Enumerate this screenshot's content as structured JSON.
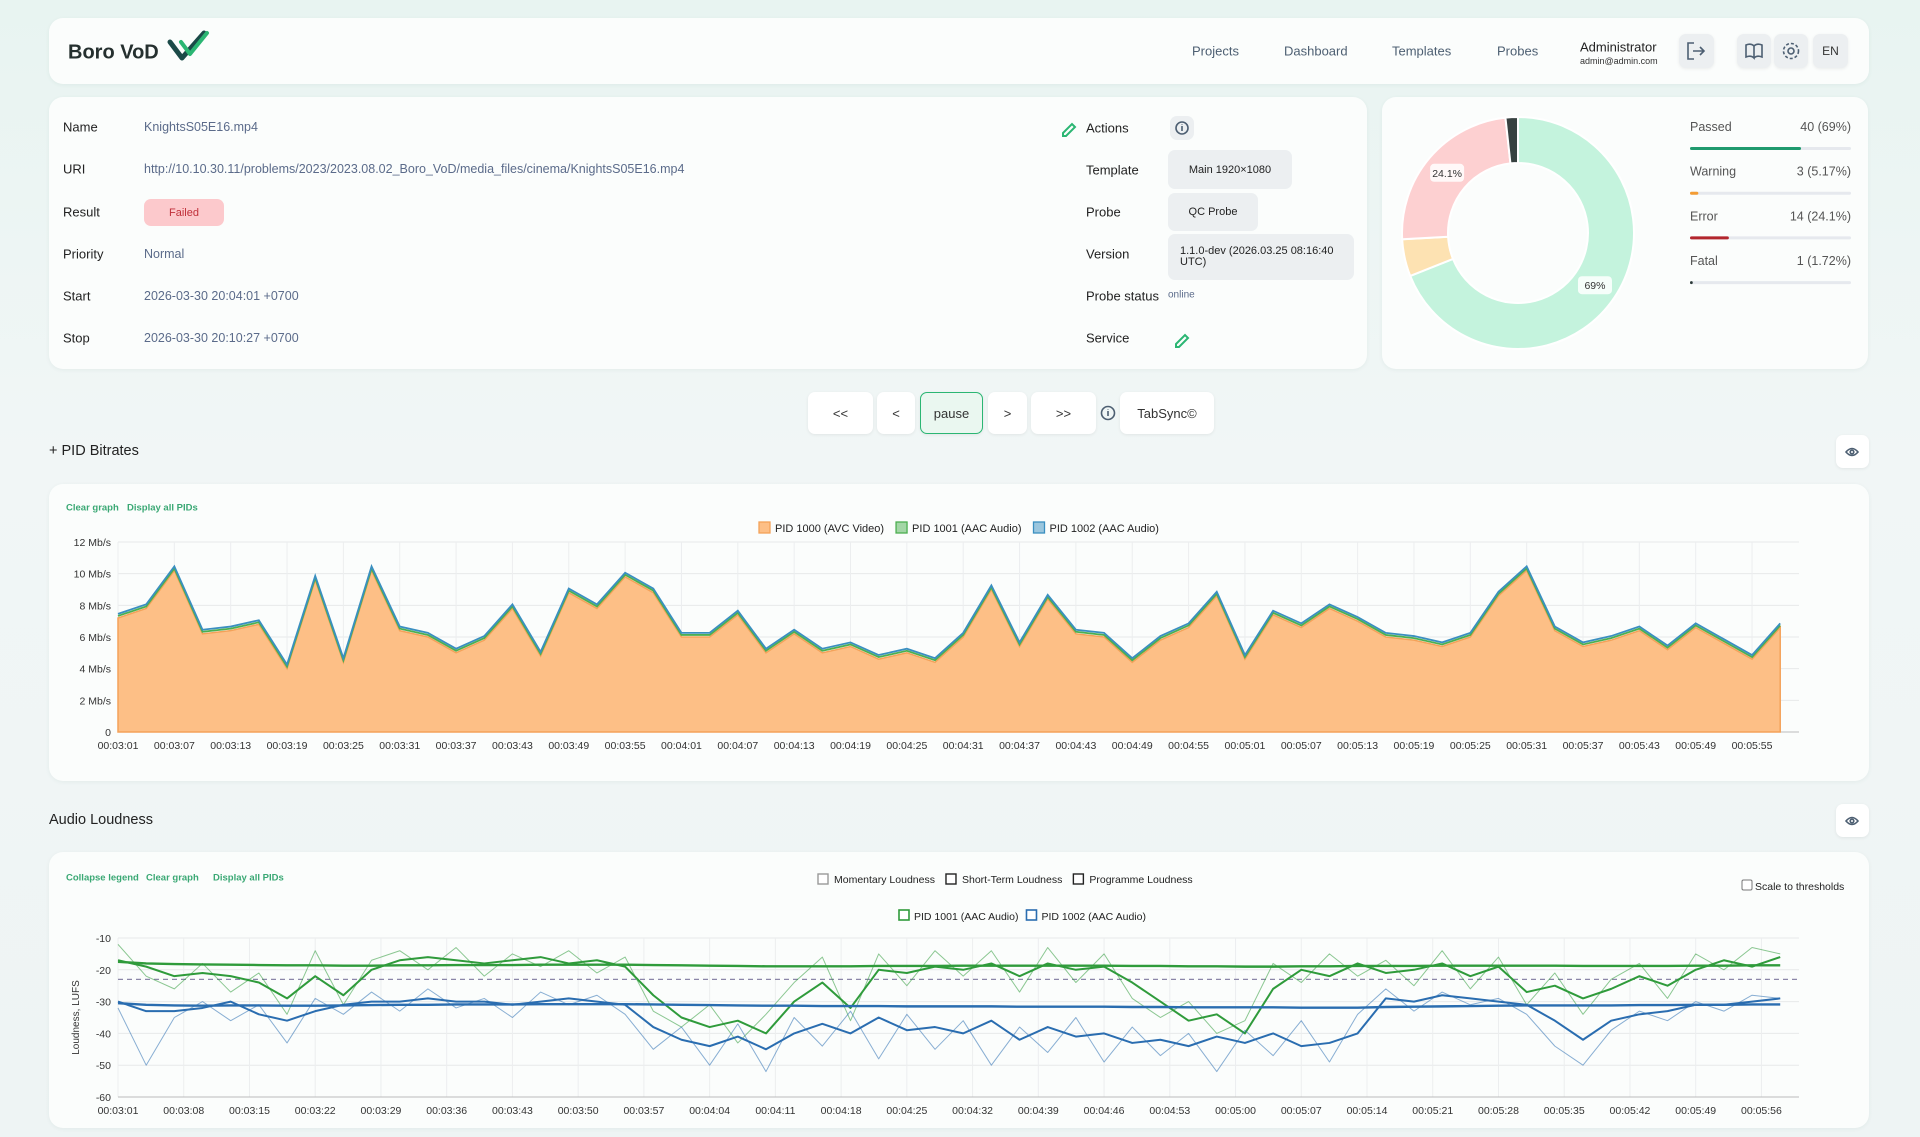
{
  "header": {
    "brand": "Boro VoD",
    "nav": [
      "Projects",
      "Dashboard",
      "Templates",
      "Probes"
    ],
    "user": "Administrator",
    "email": "admin@admin.com",
    "language": "EN"
  },
  "details": {
    "rows": [
      [
        "Name",
        "KnightsS05E16.mp4"
      ],
      [
        "URI",
        "http://10.10.30.11/problems/2023/2023.08.02_Boro_VoD/media_files/cinema/KnightsS05E16.mp4"
      ],
      [
        "Result",
        "Failed"
      ],
      [
        "Priority",
        "Normal"
      ],
      [
        "Start",
        "2026-03-30 20:04:01 +0700"
      ],
      [
        "Stop",
        "2026-03-30 20:10:27 +0700"
      ]
    ],
    "side": [
      [
        "Actions"
      ],
      [
        "Template",
        "Main 1920×1080"
      ],
      [
        "Probe",
        "QC Probe"
      ],
      [
        "Version",
        "1.1.0-dev (2026.03.25 08:16:40 UTC)"
      ],
      [
        "Probe status",
        "online"
      ],
      [
        "Service"
      ]
    ]
  },
  "controls": [
    "<<",
    "<",
    "pause",
    ">",
    ">>"
  ],
  "tabsync": "TabSync©",
  "bitrates": {
    "title": "+ PID Bitrates",
    "links": [
      "Clear graph",
      "Display all PIDs"
    ]
  },
  "loudness": {
    "title": "Audio Loudness",
    "links": [
      "Collapse legend",
      "Clear graph",
      "Display all PIDs"
    ],
    "toggle": "Scale to thresholds"
  },
  "chart_data": [
    {
      "type": "donut",
      "categories": [
        "Passed",
        "Warning",
        "Error",
        "Fatal"
      ],
      "values": [
        40,
        3,
        14,
        1
      ],
      "value_labels": [
        "40 (69%)",
        "3 (5.17%)",
        "14 (24.1%)",
        "1 (1.72%)"
      ],
      "slice_labels": [
        "69%",
        null,
        "24.1%",
        null
      ],
      "colors": [
        "#c4f3dd",
        "#fde2b2",
        "#fdd0d1",
        "#374140"
      ],
      "bar_colors": [
        "#1f9a6e",
        "#f39c34",
        "#b3262d",
        "#2c3a3a"
      ]
    },
    {
      "type": "stacked-area",
      "x": [
        181,
        184,
        187,
        190,
        193,
        196,
        199,
        202,
        205,
        208,
        211,
        214,
        217,
        220,
        223,
        226,
        229,
        232,
        235,
        238,
        241,
        244,
        247,
        250,
        253,
        256,
        259,
        262,
        265,
        268,
        271,
        274,
        277,
        280,
        283,
        286,
        289,
        292,
        295,
        298,
        301,
        304,
        307,
        310,
        313,
        316,
        319,
        322,
        325,
        328,
        331,
        334,
        337,
        340,
        343,
        346,
        349,
        352,
        355,
        358
      ],
      "xlim": [
        181,
        360
      ],
      "xticks": [
        {
          "value": 181,
          "label": "00:03:01"
        },
        {
          "value": 187,
          "label": "00:03:07"
        },
        {
          "value": 193,
          "label": "00:03:13"
        },
        {
          "value": 199,
          "label": "00:03:19"
        },
        {
          "value": 205,
          "label": "00:03:25"
        },
        {
          "value": 211,
          "label": "00:03:31"
        },
        {
          "value": 217,
          "label": "00:03:37"
        },
        {
          "value": 223,
          "label": "00:03:43"
        },
        {
          "value": 229,
          "label": "00:03:49"
        },
        {
          "value": 235,
          "label": "00:03:55"
        },
        {
          "value": 241,
          "label": "00:04:01"
        },
        {
          "value": 247,
          "label": "00:04:07"
        },
        {
          "value": 253,
          "label": "00:04:13"
        },
        {
          "value": 259,
          "label": "00:04:19"
        },
        {
          "value": 265,
          "label": "00:04:25"
        },
        {
          "value": 271,
          "label": "00:04:31"
        },
        {
          "value": 277,
          "label": "00:04:37"
        },
        {
          "value": 283,
          "label": "00:04:43"
        },
        {
          "value": 289,
          "label": "00:04:49"
        },
        {
          "value": 295,
          "label": "00:04:55"
        },
        {
          "value": 301,
          "label": "00:05:01"
        },
        {
          "value": 307,
          "label": "00:05:07"
        },
        {
          "value": 313,
          "label": "00:05:13"
        },
        {
          "value": 319,
          "label": "00:05:19"
        },
        {
          "value": 325,
          "label": "00:05:25"
        },
        {
          "value": 331,
          "label": "00:05:31"
        },
        {
          "value": 337,
          "label": "00:05:37"
        },
        {
          "value": 343,
          "label": "00:05:43"
        },
        {
          "value": 349,
          "label": "00:05:49"
        },
        {
          "value": 355,
          "label": "00:05:55"
        }
      ],
      "ylim": [
        0,
        12
      ],
      "yticks": [
        0,
        {
          "value": 2,
          "label": "2 Mb/s"
        },
        {
          "value": 4,
          "label": "4 Mb/s"
        },
        {
          "value": 6,
          "label": "6 Mb/s"
        },
        {
          "value": 8,
          "label": "8 Mb/s"
        },
        {
          "value": 10,
          "label": "10 Mb/s"
        },
        {
          "value": 12,
          "label": "12 Mb/s"
        }
      ],
      "grid": true,
      "series": [
        {
          "name": "PID 1000 (AVC Video)",
          "color": "#f4a259",
          "fill": "#fdbf86",
          "values": [
            7.2,
            7.8,
            10.2,
            6.2,
            6.4,
            6.8,
            4.0,
            9.6,
            4.4,
            10.2,
            6.4,
            6.0,
            5.0,
            5.8,
            7.8,
            4.8,
            8.8,
            7.8,
            9.8,
            8.8,
            6.0,
            6.0,
            7.4,
            5.0,
            6.2,
            5.0,
            5.4,
            4.6,
            5.0,
            4.4,
            6.0,
            9.0,
            5.4,
            8.4,
            6.2,
            6.0,
            4.4,
            5.8,
            6.6,
            8.6,
            4.6,
            7.4,
            6.6,
            7.8,
            7.0,
            6.0,
            5.8,
            5.4,
            6.0,
            8.6,
            10.2,
            6.4,
            5.4,
            5.8,
            6.4,
            5.2,
            6.6,
            5.6,
            4.6,
            6.6
          ]
        },
        {
          "name": "PID 1001 (AAC Audio)",
          "color": "#4caf50",
          "values": [
            0.13,
            0.13,
            0.13,
            0.13,
            0.13,
            0.13,
            0.13,
            0.13,
            0.13,
            0.13,
            0.13,
            0.13,
            0.13,
            0.13,
            0.13,
            0.13,
            0.13,
            0.13,
            0.13,
            0.13,
            0.13,
            0.13,
            0.13,
            0.13,
            0.13,
            0.13,
            0.13,
            0.13,
            0.13,
            0.13,
            0.13,
            0.13,
            0.13,
            0.13,
            0.13,
            0.13,
            0.13,
            0.13,
            0.13,
            0.13,
            0.13,
            0.13,
            0.13,
            0.13,
            0.13,
            0.13,
            0.13,
            0.13,
            0.13,
            0.13,
            0.13,
            0.13,
            0.13,
            0.13,
            0.13,
            0.13,
            0.13,
            0.13,
            0.13,
            0.13
          ]
        },
        {
          "name": "PID 1002 (AAC Audio)",
          "color": "#3a8fc0",
          "values": [
            0.13,
            0.13,
            0.13,
            0.13,
            0.13,
            0.13,
            0.13,
            0.13,
            0.13,
            0.13,
            0.13,
            0.13,
            0.13,
            0.13,
            0.13,
            0.13,
            0.13,
            0.13,
            0.13,
            0.13,
            0.13,
            0.13,
            0.13,
            0.13,
            0.13,
            0.13,
            0.13,
            0.13,
            0.13,
            0.13,
            0.13,
            0.13,
            0.13,
            0.13,
            0.13,
            0.13,
            0.13,
            0.13,
            0.13,
            0.13,
            0.13,
            0.13,
            0.13,
            0.13,
            0.13,
            0.13,
            0.13,
            0.13,
            0.13,
            0.13,
            0.13,
            0.13,
            0.13,
            0.13,
            0.13,
            0.13,
            0.13,
            0.13,
            0.13,
            0.13
          ]
        }
      ]
    },
    {
      "type": "line",
      "y_label": "Loudness, LUFS",
      "measures": [
        "Momentary Loudness",
        "Short-Term Loudness",
        "Programme Loudness"
      ],
      "x": [
        181,
        184,
        187,
        190,
        193,
        196,
        199,
        202,
        205,
        208,
        211,
        214,
        217,
        220,
        223,
        226,
        229,
        232,
        235,
        238,
        241,
        244,
        247,
        250,
        253,
        256,
        259,
        262,
        265,
        268,
        271,
        274,
        277,
        280,
        283,
        286,
        289,
        292,
        295,
        298,
        301,
        304,
        307,
        310,
        313,
        316,
        319,
        322,
        325,
        328,
        331,
        334,
        337,
        340,
        343,
        346,
        349,
        352,
        355,
        358
      ],
      "xlim": [
        181,
        360
      ],
      "xticks": [
        {
          "value": 181,
          "label": "00:03:01"
        },
        {
          "value": 188,
          "label": "00:03:08"
        },
        {
          "value": 195,
          "label": "00:03:15"
        },
        {
          "value": 202,
          "label": "00:03:22"
        },
        {
          "value": 209,
          "label": "00:03:29"
        },
        {
          "value": 216,
          "label": "00:03:36"
        },
        {
          "value": 223,
          "label": "00:03:43"
        },
        {
          "value": 230,
          "label": "00:03:50"
        },
        {
          "value": 237,
          "label": "00:03:57"
        },
        {
          "value": 244,
          "label": "00:04:04"
        },
        {
          "value": 251,
          "label": "00:04:11"
        },
        {
          "value": 258,
          "label": "00:04:18"
        },
        {
          "value": 265,
          "label": "00:04:25"
        },
        {
          "value": 272,
          "label": "00:04:32"
        },
        {
          "value": 279,
          "label": "00:04:39"
        },
        {
          "value": 286,
          "label": "00:04:46"
        },
        {
          "value": 293,
          "label": "00:04:53"
        },
        {
          "value": 300,
          "label": "00:05:00"
        },
        {
          "value": 307,
          "label": "00:05:07"
        },
        {
          "value": 314,
          "label": "00:05:14"
        },
        {
          "value": 321,
          "label": "00:05:21"
        },
        {
          "value": 328,
          "label": "00:05:28"
        },
        {
          "value": 335,
          "label": "00:05:35"
        },
        {
          "value": 342,
          "label": "00:05:42"
        },
        {
          "value": 349,
          "label": "00:05:49"
        },
        {
          "value": 356,
          "label": "00:05:56"
        }
      ],
      "ylim": [
        -60,
        -10
      ],
      "yticks": [
        -10,
        -20,
        -30,
        -40,
        -50,
        -60
      ],
      "grid": true,
      "reference_line": -23,
      "series": [
        {
          "name": "PID 1001 (AAC Audio)",
          "color": "#2f9b3b",
          "momentary": [
            -12,
            -22,
            -26,
            -18,
            -27,
            -21,
            -34,
            -14,
            -31,
            -17,
            -14,
            -20,
            -13,
            -22,
            -15,
            -19,
            -14,
            -21,
            -16,
            -33,
            -38,
            -31,
            -43,
            -34,
            -24,
            -16,
            -36,
            -15,
            -25,
            -14,
            -22,
            -14,
            -27,
            -13,
            -24,
            -15,
            -29,
            -35,
            -30,
            -40,
            -36,
            -18,
            -24,
            -15,
            -22,
            -17,
            -25,
            -14,
            -26,
            -16,
            -31,
            -21,
            -34,
            -23,
            -18,
            -29,
            -15,
            -20,
            -13,
            -15
          ],
          "short_term": [
            -17,
            -19,
            -22,
            -21,
            -22,
            -24,
            -29,
            -22,
            -28,
            -20,
            -17,
            -16,
            -17,
            -18,
            -17,
            -16,
            -18,
            -17,
            -19,
            -28,
            -35,
            -38,
            -36,
            -40,
            -30,
            -24,
            -32,
            -20,
            -21,
            -19,
            -20,
            -18,
            -22,
            -18,
            -20,
            -19,
            -24,
            -30,
            -36,
            -34,
            -40,
            -26,
            -20,
            -22,
            -18,
            -21,
            -20,
            -18,
            -22,
            -19,
            -27,
            -25,
            -29,
            -26,
            -22,
            -25,
            -20,
            -17,
            -19,
            -16
          ],
          "programme": [
            -17.5,
            -18.0,
            -18.2,
            -18.3,
            -18.4,
            -18.5,
            -18.6,
            -18.6,
            -18.7,
            -18.7,
            -18.6,
            -18.6,
            -18.5,
            -18.5,
            -18.5,
            -18.4,
            -18.4,
            -18.4,
            -18.4,
            -18.5,
            -18.6,
            -18.7,
            -18.8,
            -18.9,
            -18.9,
            -18.9,
            -18.9,
            -18.8,
            -18.8,
            -18.8,
            -18.7,
            -18.7,
            -18.7,
            -18.7,
            -18.7,
            -18.7,
            -18.8,
            -18.8,
            -18.9,
            -18.9,
            -19.0,
            -19.0,
            -18.9,
            -18.9,
            -18.8,
            -18.8,
            -18.8,
            -18.7,
            -18.7,
            -18.7,
            -18.7,
            -18.7,
            -18.8,
            -18.8,
            -18.8,
            -18.8,
            -18.7,
            -18.7,
            -18.6,
            -18.6
          ]
        },
        {
          "name": "PID 1002 (AAC Audio)",
          "color": "#2a6db0",
          "momentary": [
            -32,
            -50,
            -35,
            -30,
            -36,
            -31,
            -43,
            -29,
            -34,
            -27,
            -33,
            -26,
            -32,
            -29,
            -35,
            -27,
            -31,
            -28,
            -34,
            -45,
            -38,
            -50,
            -37,
            -52,
            -35,
            -44,
            -33,
            -48,
            -34,
            -45,
            -36,
            -50,
            -38,
            -46,
            -35,
            -49,
            -38,
            -47,
            -40,
            -52,
            -39,
            -47,
            -36,
            -49,
            -34,
            -26,
            -33,
            -27,
            -31,
            -29,
            -34,
            -44,
            -50,
            -39,
            -33,
            -36,
            -30,
            -33,
            -28,
            -29
          ],
          "short_term": [
            -30,
            -33,
            -33,
            -32,
            -30,
            -34,
            -36,
            -33,
            -31,
            -30,
            -30,
            -29,
            -30,
            -30,
            -31,
            -30,
            -29,
            -30,
            -31,
            -38,
            -42,
            -44,
            -41,
            -45,
            -40,
            -37,
            -40,
            -35,
            -39,
            -38,
            -40,
            -36,
            -42,
            -38,
            -41,
            -40,
            -43,
            -42,
            -44,
            -41,
            -43,
            -40,
            -44,
            -43,
            -40,
            -29,
            -30,
            -28,
            -29,
            -30,
            -31,
            -36,
            -42,
            -36,
            -34,
            -33,
            -31,
            -31,
            -30,
            -29
          ],
          "programme": [
            -30.5,
            -31.0,
            -31.2,
            -31.3,
            -31.2,
            -31.2,
            -31.3,
            -31.3,
            -31.2,
            -31.1,
            -31.0,
            -31.0,
            -30.9,
            -30.9,
            -30.9,
            -30.8,
            -30.8,
            -30.8,
            -30.8,
            -30.9,
            -31.0,
            -31.1,
            -31.2,
            -31.3,
            -31.3,
            -31.4,
            -31.4,
            -31.4,
            -31.5,
            -31.5,
            -31.5,
            -31.5,
            -31.6,
            -31.6,
            -31.6,
            -31.6,
            -31.7,
            -31.7,
            -31.8,
            -31.8,
            -31.8,
            -31.8,
            -31.9,
            -31.9,
            -31.9,
            -31.7,
            -31.6,
            -31.5,
            -31.4,
            -31.3,
            -31.2,
            -31.2,
            -31.2,
            -31.2,
            -31.1,
            -31.1,
            -31.0,
            -31.0,
            -30.9,
            -30.9
          ]
        }
      ]
    }
  ]
}
